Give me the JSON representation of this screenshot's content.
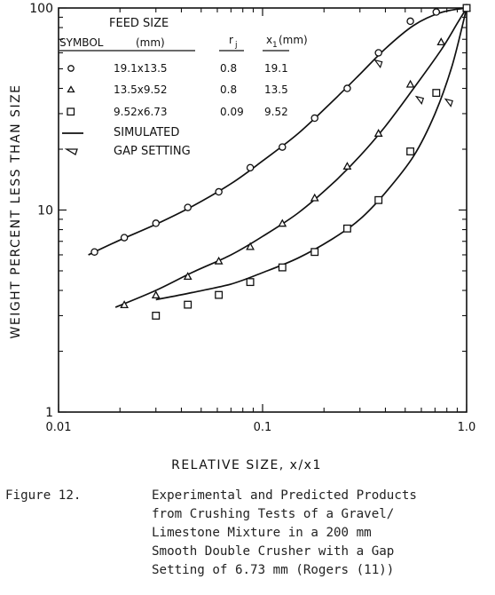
{
  "chart_data": {
    "type": "scatter",
    "x_scale": "log",
    "y_scale": "log",
    "xlim": [
      0.01,
      1.0
    ],
    "ylim": [
      1,
      100
    ],
    "x_ticks": [
      "0.01",
      "0.1",
      "1.0"
    ],
    "y_ticks": [
      "1",
      "10",
      "100"
    ],
    "xlabel": "RELATIVE SIZE, x/x1",
    "ylabel": "WEIGHT PERCENT LESS THAN SIZE",
    "legend": {
      "header_feed": "FEED SIZE",
      "header_symbol": "SYMBOL",
      "header_mm": "(mm)",
      "header_rj": "r",
      "header_rj_sub": "j",
      "header_x1": "x",
      "header_x1_sub": "1",
      "header_x1_unit": "(mm)",
      "rows": [
        {
          "symbol": "circle",
          "feed": "19.1x13.5",
          "rj": "0.8",
          "x1": "19.1"
        },
        {
          "symbol": "triangle",
          "feed": "13.5x9.52",
          "rj": "0.8",
          "x1": "13.5"
        },
        {
          "symbol": "square",
          "feed": "9.52x6.73",
          "rj": "0.09",
          "x1": "9.52"
        }
      ],
      "simulated": "SIMULATED",
      "gap": "GAP SETTING"
    },
    "series": [
      {
        "symbol": "circle",
        "points": [
          [
            0.015,
            6.2
          ],
          [
            0.021,
            7.3
          ],
          [
            0.03,
            8.6
          ],
          [
            0.043,
            10.3
          ],
          [
            0.061,
            12.3
          ],
          [
            0.087,
            16.2
          ],
          [
            0.125,
            20.5
          ],
          [
            0.18,
            28.5
          ],
          [
            0.26,
            40.0
          ],
          [
            0.37,
            60.0
          ],
          [
            0.53,
            86.0
          ],
          [
            0.71,
            95.5
          ],
          [
            1.0,
            100.0
          ]
        ],
        "simulated": [
          [
            0.014,
            6.0
          ],
          [
            0.02,
            7.1
          ],
          [
            0.03,
            8.5
          ],
          [
            0.045,
            10.4
          ],
          [
            0.07,
            13.5
          ],
          [
            0.1,
            17.5
          ],
          [
            0.15,
            24.0
          ],
          [
            0.22,
            34.5
          ],
          [
            0.3,
            47.0
          ],
          [
            0.4,
            63.0
          ],
          [
            0.55,
            82.0
          ],
          [
            0.75,
            95.0
          ],
          [
            1.0,
            100.0
          ]
        ],
        "gap_setting": [
          0.37,
          53.0
        ]
      },
      {
        "symbol": "triangle",
        "points": [
          [
            0.021,
            3.4
          ],
          [
            0.03,
            3.8
          ],
          [
            0.043,
            4.7
          ],
          [
            0.061,
            5.6
          ],
          [
            0.087,
            6.6
          ],
          [
            0.125,
            8.6
          ],
          [
            0.18,
            11.5
          ],
          [
            0.26,
            16.5
          ],
          [
            0.37,
            24.0
          ],
          [
            0.53,
            42.0
          ],
          [
            0.75,
            68.0
          ],
          [
            1.0,
            100.0
          ]
        ],
        "simulated": [
          [
            0.019,
            3.3
          ],
          [
            0.03,
            4.0
          ],
          [
            0.045,
            4.9
          ],
          [
            0.07,
            6.0
          ],
          [
            0.1,
            7.4
          ],
          [
            0.15,
            9.7
          ],
          [
            0.22,
            13.5
          ],
          [
            0.3,
            18.5
          ],
          [
            0.4,
            26.0
          ],
          [
            0.55,
            40.0
          ],
          [
            0.75,
            62.0
          ],
          [
            0.9,
            84.0
          ],
          [
            1.0,
            100.0
          ]
        ],
        "gap_setting": [
          0.59,
          35.0
        ]
      },
      {
        "symbol": "square",
        "points": [
          [
            0.03,
            3.0
          ],
          [
            0.043,
            3.4
          ],
          [
            0.061,
            3.8
          ],
          [
            0.087,
            4.4
          ],
          [
            0.125,
            5.2
          ],
          [
            0.18,
            6.2
          ],
          [
            0.26,
            8.1
          ],
          [
            0.37,
            11.2
          ],
          [
            0.53,
            19.5
          ],
          [
            0.71,
            38.0
          ],
          [
            1.0,
            100.0
          ]
        ],
        "simulated": [
          [
            0.03,
            3.6
          ],
          [
            0.045,
            3.9
          ],
          [
            0.07,
            4.3
          ],
          [
            0.1,
            4.9
          ],
          [
            0.15,
            5.8
          ],
          [
            0.22,
            7.2
          ],
          [
            0.3,
            9.0
          ],
          [
            0.4,
            12.2
          ],
          [
            0.55,
            18.5
          ],
          [
            0.7,
            30.0
          ],
          [
            0.85,
            52.0
          ],
          [
            1.0,
            100.0
          ]
        ],
        "gap_setting": [
          0.82,
          34.0
        ]
      }
    ]
  },
  "caption": {
    "label": "Figure 12.",
    "lines": [
      "Experimental and Predicted Products",
      "from Crushing Tests of a Gravel/",
      "Limestone Mixture in a 200 mm",
      "Smooth Double Crusher with a Gap",
      "Setting of 6.73 mm (Rogers (11))"
    ]
  }
}
